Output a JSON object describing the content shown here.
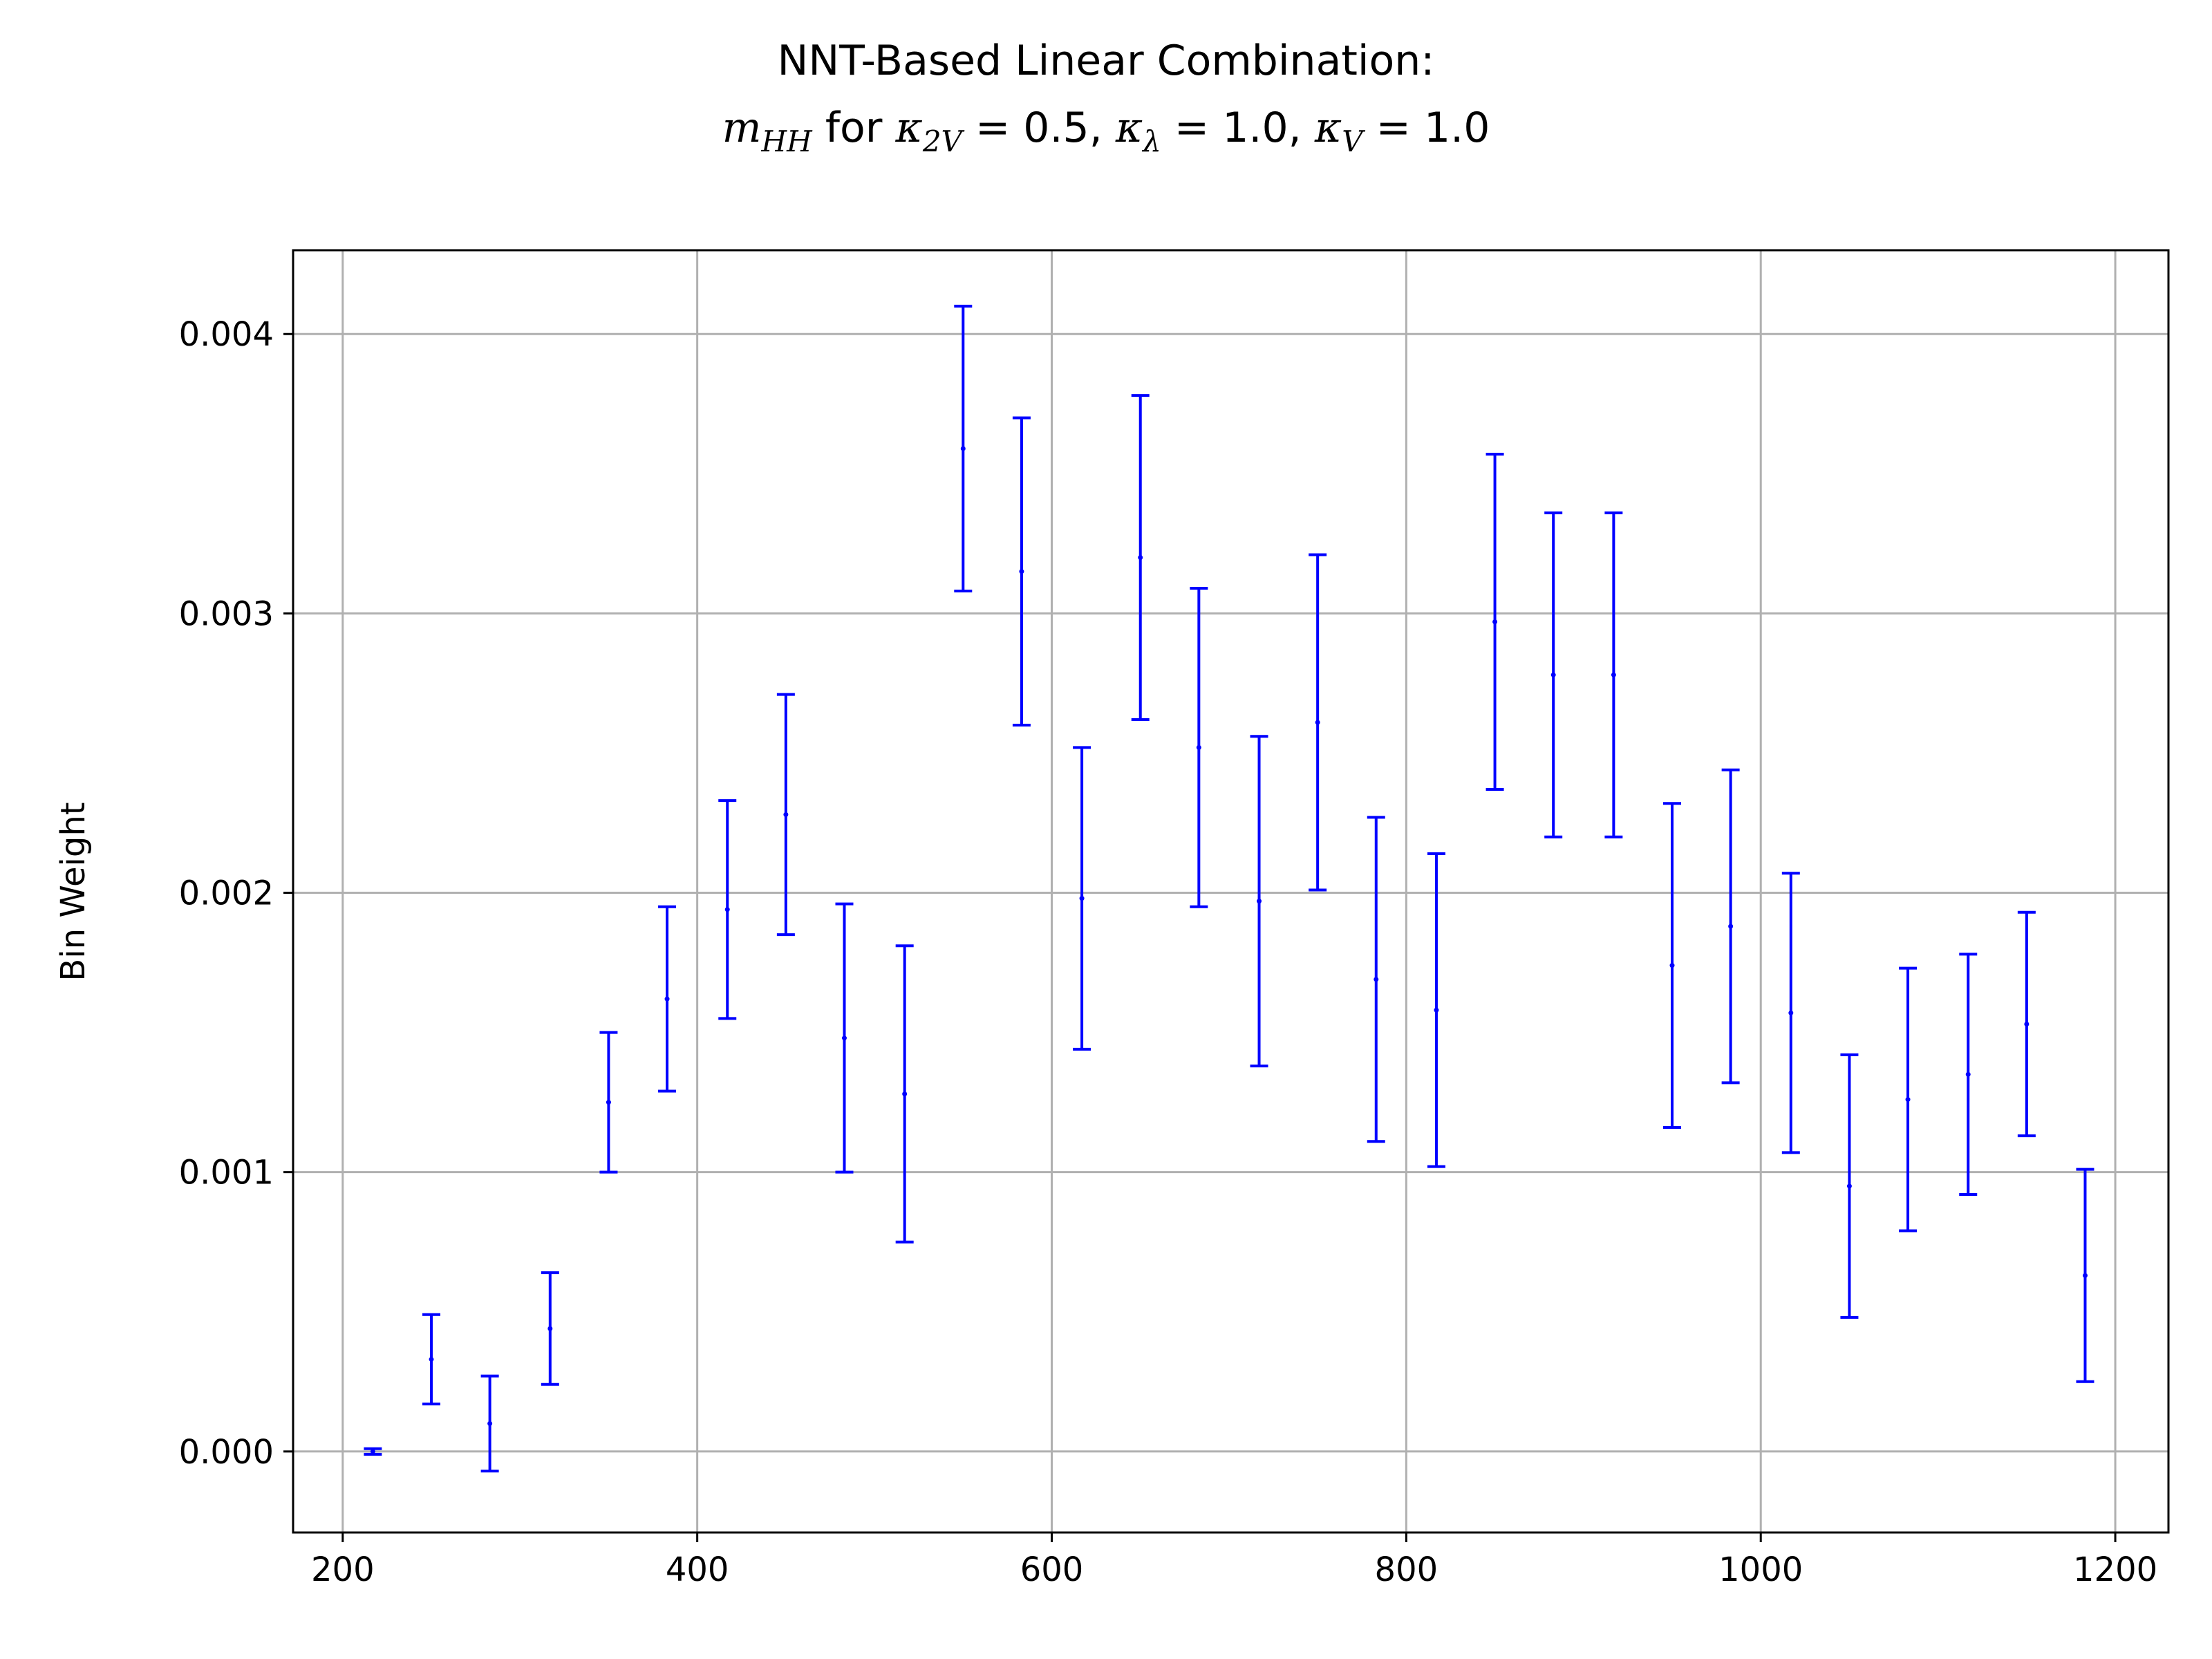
{
  "chart_data": {
    "type": "errorbar",
    "title_line1": "NNT-Based Linear Combination:",
    "title_line2": {
      "m": "m",
      "m_sub": "HH",
      "for": " for ",
      "k1": "κ",
      "k1_sub": "2V",
      "v1": " = 0.5, ",
      "k2": "κ",
      "k2_sub": "λ",
      "v2": " = 1.0, ",
      "k3": "κ",
      "k3_sub": "V",
      "v3": " = 1.0"
    },
    "xlabel": "",
    "ylabel": "Bin Weight",
    "xlim": [
      172,
      1230
    ],
    "ylim": [
      -0.00029,
      0.0043
    ],
    "xticks": [
      200,
      400,
      600,
      800,
      1000,
      1200
    ],
    "yticks": [
      0.0,
      0.001,
      0.002,
      0.003,
      0.004
    ],
    "xtick_labels": [
      "200",
      "400",
      "600",
      "800",
      "1000",
      "1200"
    ],
    "ytick_labels": [
      "0.000",
      "0.001",
      "0.002",
      "0.003",
      "0.004"
    ],
    "grid": true,
    "color": "#0000ff",
    "points": [
      {
        "x": 217,
        "y": 0.0,
        "err": 1e-05
      },
      {
        "x": 250,
        "y": 0.00033,
        "err": 0.00016
      },
      {
        "x": 283,
        "y": 0.0001,
        "err": 0.00017
      },
      {
        "x": 317,
        "y": 0.00044,
        "err": 0.0002
      },
      {
        "x": 350,
        "y": 0.00125,
        "err": 0.00025
      },
      {
        "x": 383,
        "y": 0.00162,
        "err": 0.00033
      },
      {
        "x": 417,
        "y": 0.00194,
        "err": 0.00039
      },
      {
        "x": 450,
        "y": 0.00228,
        "err": 0.00043
      },
      {
        "x": 483,
        "y": 0.00148,
        "err": 0.00048
      },
      {
        "x": 517,
        "y": 0.00128,
        "err": 0.00053
      },
      {
        "x": 550,
        "y": 0.00359,
        "err": 0.00051
      },
      {
        "x": 583,
        "y": 0.00315,
        "err": 0.00055
      },
      {
        "x": 617,
        "y": 0.00198,
        "err": 0.00054
      },
      {
        "x": 650,
        "y": 0.0032,
        "err": 0.00058
      },
      {
        "x": 683,
        "y": 0.00252,
        "err": 0.00057
      },
      {
        "x": 717,
        "y": 0.00197,
        "err": 0.00059
      },
      {
        "x": 750,
        "y": 0.00261,
        "err": 0.0006
      },
      {
        "x": 783,
        "y": 0.00169,
        "err": 0.00058
      },
      {
        "x": 817,
        "y": 0.00158,
        "err": 0.00056
      },
      {
        "x": 850,
        "y": 0.00297,
        "err": 0.0006
      },
      {
        "x": 883,
        "y": 0.00278,
        "err": 0.00058
      },
      {
        "x": 917,
        "y": 0.00278,
        "err": 0.00058
      },
      {
        "x": 950,
        "y": 0.00174,
        "err": 0.00058
      },
      {
        "x": 983,
        "y": 0.00188,
        "err": 0.00056
      },
      {
        "x": 1017,
        "y": 0.00157,
        "err": 0.0005
      },
      {
        "x": 1050,
        "y": 0.00095,
        "err": 0.00047
      },
      {
        "x": 1083,
        "y": 0.00126,
        "err": 0.00047
      },
      {
        "x": 1117,
        "y": 0.00135,
        "err": 0.00043
      },
      {
        "x": 1150,
        "y": 0.00153,
        "err": 0.0004
      },
      {
        "x": 1183,
        "y": 0.00063,
        "err": 0.00038
      }
    ]
  }
}
